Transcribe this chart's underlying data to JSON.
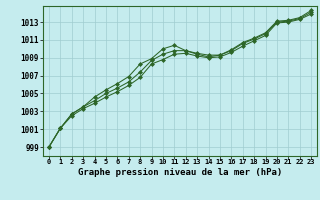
{
  "title": "Graphe pression niveau de la mer (hPa)",
  "background_color": "#c5ecee",
  "grid_color": "#a0cdd0",
  "line_color": "#2d6628",
  "x_labels": [
    "0",
    "1",
    "2",
    "3",
    "4",
    "5",
    "6",
    "7",
    "8",
    "9",
    "10",
    "11",
    "12",
    "13",
    "14",
    "15",
    "16",
    "17",
    "18",
    "19",
    "20",
    "21",
    "22",
    "23"
  ],
  "yticks": [
    999,
    1001,
    1003,
    1005,
    1007,
    1009,
    1011,
    1013
  ],
  "ylim": [
    998.0,
    1014.8
  ],
  "xlim": [
    -0.5,
    23.5
  ],
  "series": {
    "min": [
      999.0,
      1001.1,
      1002.5,
      1003.3,
      1003.9,
      1004.6,
      1005.2,
      1005.9,
      1006.8,
      1008.3,
      1008.8,
      1009.4,
      1009.5,
      1009.2,
      1009.0,
      1009.1,
      1009.6,
      1010.3,
      1010.9,
      1011.5,
      1012.9,
      1013.0,
      1013.3,
      1013.9
    ],
    "mean": [
      999.0,
      1001.1,
      1002.7,
      1003.5,
      1004.2,
      1005.0,
      1005.6,
      1006.3,
      1007.4,
      1008.7,
      1009.4,
      1009.8,
      1009.8,
      1009.4,
      1009.1,
      1009.3,
      1009.8,
      1010.6,
      1011.1,
      1011.7,
      1013.0,
      1013.1,
      1013.4,
      1014.1
    ],
    "max": [
      999.0,
      1001.1,
      1002.7,
      1003.5,
      1004.6,
      1005.4,
      1006.1,
      1006.9,
      1008.3,
      1008.9,
      1010.0,
      1010.4,
      1009.8,
      1009.5,
      1009.3,
      1009.3,
      1009.9,
      1010.7,
      1011.2,
      1011.8,
      1013.1,
      1013.2,
      1013.5,
      1014.3
    ]
  }
}
